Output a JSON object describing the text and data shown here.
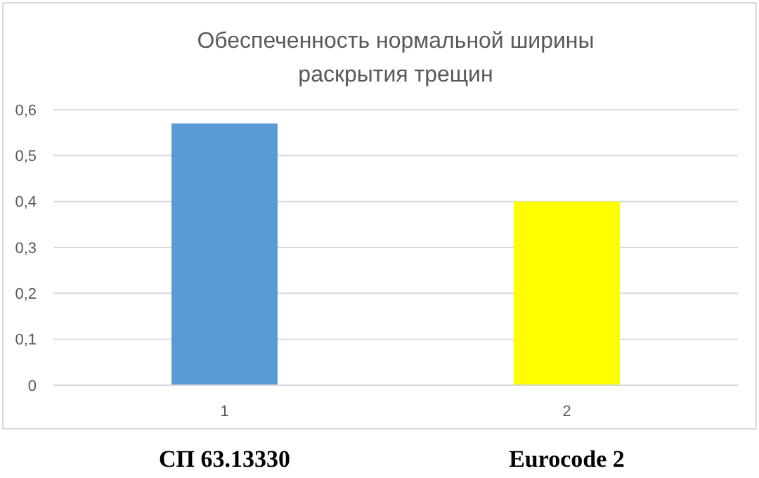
{
  "chart_data": {
    "type": "bar",
    "title": "Обеспеченность нормальной ширины раскрытия трещин",
    "categories": [
      "1",
      "2"
    ],
    "values": [
      0.57,
      0.4
    ],
    "colors": [
      "#5b9bd5",
      "#ffff00"
    ],
    "ylim": [
      0,
      0.6
    ],
    "yticks": [
      {
        "value": 0,
        "label": "0"
      },
      {
        "value": 0.1,
        "label": "0,1"
      },
      {
        "value": 0.2,
        "label": "0,2"
      },
      {
        "value": 0.3,
        "label": "0,3"
      },
      {
        "value": 0.4,
        "label": "0,4"
      },
      {
        "value": 0.5,
        "label": "0,5"
      },
      {
        "value": 0.6,
        "label": "0,6"
      }
    ],
    "grid": "y",
    "annotations": [
      "СП 63.13330",
      "Eurocode 2"
    ]
  }
}
